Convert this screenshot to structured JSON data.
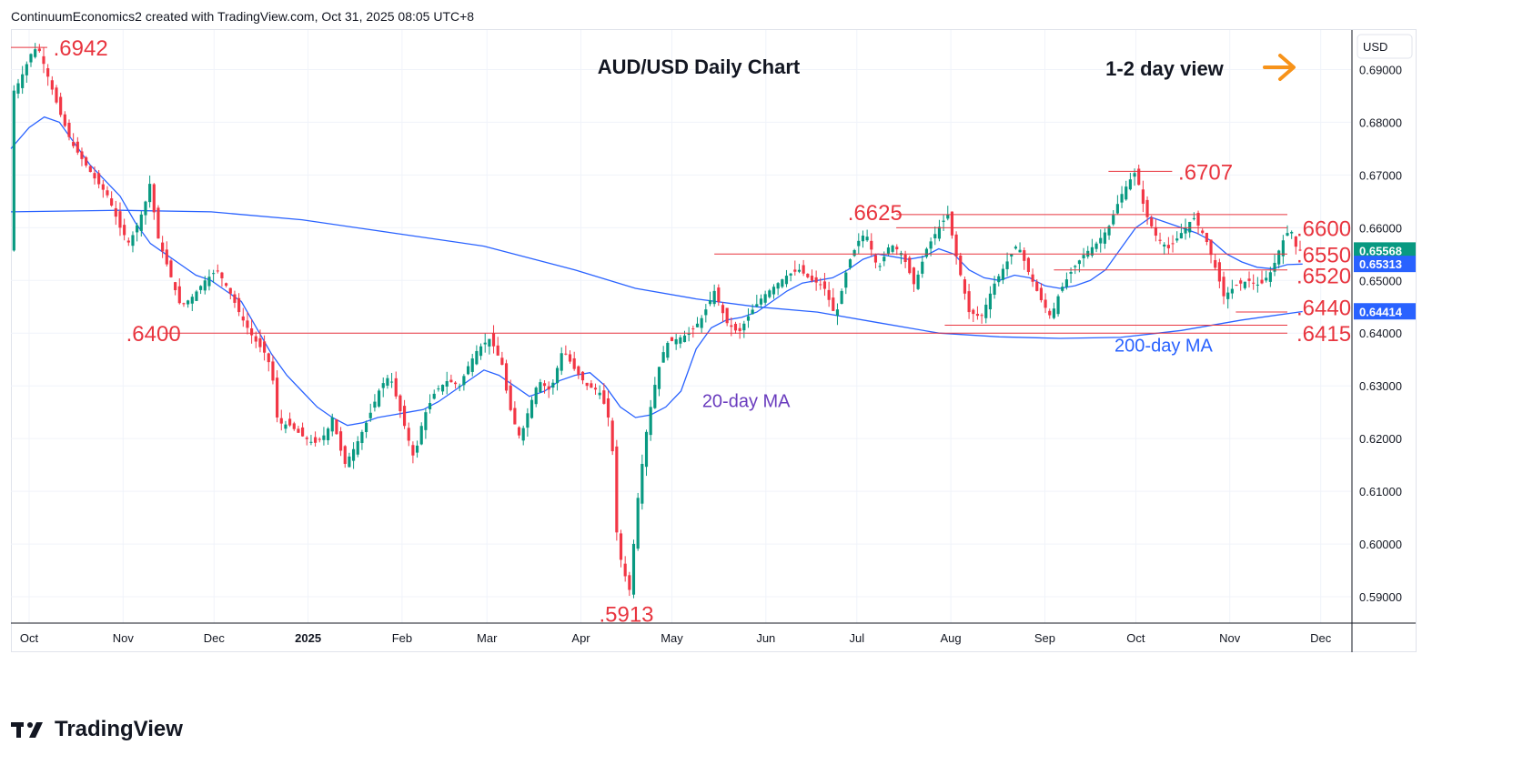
{
  "header": {
    "attribution": "ContinuumEconomics2 created with TradingView.com, Oct 31, 2025 08:05 UTC+8"
  },
  "footer": {
    "brand": "TradingView"
  },
  "chart_data": {
    "type": "candlestick",
    "title": "AUD/USD Daily Chart",
    "view_note": "1-2 day view",
    "view_arrow_color": "#f7931a",
    "currency": "USD",
    "y_range": [
      0.585,
      0.6975
    ],
    "y_ticks": [
      "0.59000",
      "0.60000",
      "0.61000",
      "0.62000",
      "0.63000",
      "0.64000",
      "0.65000",
      "0.66000",
      "0.67000",
      "0.68000",
      "0.69000"
    ],
    "x_ticks": [
      {
        "label": "Oct",
        "day": 0,
        "bold": false
      },
      {
        "label": "Nov",
        "day": 31,
        "bold": false
      },
      {
        "label": "Dec",
        "day": 61,
        "bold": false
      },
      {
        "label": "2025",
        "day": 92,
        "bold": true
      },
      {
        "label": "Feb",
        "day": 123,
        "bold": false
      },
      {
        "label": "Mar",
        "day": 151,
        "bold": false
      },
      {
        "label": "Apr",
        "day": 182,
        "bold": false
      },
      {
        "label": "May",
        "day": 212,
        "bold": false
      },
      {
        "label": "Jun",
        "day": 243,
        "bold": false
      },
      {
        "label": "Jul",
        "day": 273,
        "bold": false
      },
      {
        "label": "Aug",
        "day": 304,
        "bold": false
      },
      {
        "label": "Sep",
        "day": 335,
        "bold": false
      },
      {
        "label": "Oct",
        "day": 365,
        "bold": false
      },
      {
        "label": "Nov",
        "day": 396,
        "bold": false
      },
      {
        "label": "Dec",
        "day": 426,
        "bold": false
      }
    ],
    "x_day_range": [
      -6,
      436
    ],
    "price_path": [
      [
        -6,
        0.685
      ],
      [
        -3,
        0.688
      ],
      [
        1,
        0.6935
      ],
      [
        3,
        0.6942
      ],
      [
        6,
        0.689
      ],
      [
        10,
        0.682
      ],
      [
        14,
        0.676
      ],
      [
        18,
        0.6725
      ],
      [
        22,
        0.669
      ],
      [
        26,
        0.666
      ],
      [
        30,
        0.66
      ],
      [
        33,
        0.657
      ],
      [
        36,
        0.661
      ],
      [
        38,
        0.664
      ],
      [
        40,
        0.6688
      ],
      [
        42,
        0.659
      ],
      [
        46,
        0.652
      ],
      [
        50,
        0.645
      ],
      [
        54,
        0.647
      ],
      [
        58,
        0.65
      ],
      [
        62,
        0.652
      ],
      [
        66,
        0.648
      ],
      [
        70,
        0.643
      ],
      [
        74,
        0.639
      ],
      [
        78,
        0.636
      ],
      [
        80,
        0.633
      ],
      [
        82,
        0.623
      ],
      [
        86,
        0.6225
      ],
      [
        90,
        0.6205
      ],
      [
        94,
        0.619
      ],
      [
        98,
        0.621
      ],
      [
        100,
        0.624
      ],
      [
        104,
        0.615
      ],
      [
        108,
        0.619
      ],
      [
        112,
        0.624
      ],
      [
        116,
        0.63
      ],
      [
        119,
        0.632
      ],
      [
        122,
        0.626
      ],
      [
        125,
        0.62
      ],
      [
        127,
        0.616
      ],
      [
        130,
        0.624
      ],
      [
        134,
        0.629
      ],
      [
        138,
        0.631
      ],
      [
        142,
        0.63
      ],
      [
        145,
        0.634
      ],
      [
        148,
        0.637
      ],
      [
        152,
        0.639
      ],
      [
        156,
        0.634
      ],
      [
        158,
        0.627
      ],
      [
        160,
        0.623
      ],
      [
        162,
        0.62
      ],
      [
        165,
        0.626
      ],
      [
        168,
        0.631
      ],
      [
        172,
        0.629
      ],
      [
        176,
        0.637
      ],
      [
        180,
        0.633
      ],
      [
        184,
        0.63
      ],
      [
        188,
        0.629
      ],
      [
        190,
        0.626
      ],
      [
        192,
        0.622
      ],
      [
        194,
        0.6
      ],
      [
        196,
        0.595
      ],
      [
        198,
        0.5913
      ],
      [
        201,
        0.61
      ],
      [
        204,
        0.623
      ],
      [
        207,
        0.632
      ],
      [
        210,
        0.638
      ],
      [
        214,
        0.639
      ],
      [
        218,
        0.64
      ],
      [
        222,
        0.643
      ],
      [
        226,
        0.648
      ],
      [
        230,
        0.642
      ],
      [
        234,
        0.64
      ],
      [
        238,
        0.644
      ],
      [
        242,
        0.647
      ],
      [
        246,
        0.649
      ],
      [
        250,
        0.651
      ],
      [
        254,
        0.652
      ],
      [
        258,
        0.65
      ],
      [
        262,
        0.649
      ],
      [
        266,
        0.643
      ],
      [
        270,
        0.653
      ],
      [
        274,
        0.658
      ],
      [
        276,
        0.659
      ],
      [
        280,
        0.652
      ],
      [
        284,
        0.657
      ],
      [
        288,
        0.655
      ],
      [
        292,
        0.649
      ],
      [
        296,
        0.656
      ],
      [
        300,
        0.66
      ],
      [
        303,
        0.6625
      ],
      [
        306,
        0.654
      ],
      [
        310,
        0.644
      ],
      [
        314,
        0.643
      ],
      [
        318,
        0.649
      ],
      [
        322,
        0.653
      ],
      [
        326,
        0.657
      ],
      [
        330,
        0.651
      ],
      [
        334,
        0.646
      ],
      [
        337,
        0.643
      ],
      [
        340,
        0.648
      ],
      [
        344,
        0.652
      ],
      [
        348,
        0.655
      ],
      [
        352,
        0.657
      ],
      [
        356,
        0.66
      ],
      [
        360,
        0.666
      ],
      [
        363,
        0.669
      ],
      [
        365,
        0.6707
      ],
      [
        368,
        0.663
      ],
      [
        372,
        0.658
      ],
      [
        376,
        0.656
      ],
      [
        380,
        0.659
      ],
      [
        384,
        0.662
      ],
      [
        388,
        0.658
      ],
      [
        392,
        0.651
      ],
      [
        394,
        0.647
      ],
      [
        398,
        0.649
      ],
      [
        402,
        0.65
      ],
      [
        406,
        0.649
      ],
      [
        410,
        0.652
      ],
      [
        413,
        0.657
      ],
      [
        416,
        0.66
      ],
      [
        418,
        0.656
      ],
      [
        420,
        0.6557
      ]
    ],
    "ma20": [
      [
        -6,
        0.675
      ],
      [
        0,
        0.679
      ],
      [
        5,
        0.681
      ],
      [
        10,
        0.68
      ],
      [
        15,
        0.676
      ],
      [
        20,
        0.672
      ],
      [
        25,
        0.669
      ],
      [
        30,
        0.666
      ],
      [
        35,
        0.661
      ],
      [
        40,
        0.657
      ],
      [
        45,
        0.655
      ],
      [
        50,
        0.653
      ],
      [
        55,
        0.651
      ],
      [
        60,
        0.65
      ],
      [
        65,
        0.648
      ],
      [
        70,
        0.646
      ],
      [
        75,
        0.641
      ],
      [
        80,
        0.636
      ],
      [
        85,
        0.632
      ],
      [
        90,
        0.629
      ],
      [
        95,
        0.626
      ],
      [
        100,
        0.624
      ],
      [
        105,
        0.6225
      ],
      [
        110,
        0.623
      ],
      [
        115,
        0.624
      ],
      [
        120,
        0.6245
      ],
      [
        125,
        0.625
      ],
      [
        130,
        0.6255
      ],
      [
        135,
        0.627
      ],
      [
        140,
        0.629
      ],
      [
        145,
        0.631
      ],
      [
        150,
        0.633
      ],
      [
        155,
        0.632
      ],
      [
        160,
        0.63
      ],
      [
        165,
        0.628
      ],
      [
        170,
        0.629
      ],
      [
        175,
        0.631
      ],
      [
        180,
        0.632
      ],
      [
        185,
        0.6325
      ],
      [
        190,
        0.63
      ],
      [
        195,
        0.626
      ],
      [
        200,
        0.624
      ],
      [
        205,
        0.6245
      ],
      [
        210,
        0.626
      ],
      [
        215,
        0.629
      ],
      [
        220,
        0.637
      ],
      [
        225,
        0.641
      ],
      [
        230,
        0.6425
      ],
      [
        235,
        0.643
      ],
      [
        240,
        0.644
      ],
      [
        245,
        0.646
      ],
      [
        250,
        0.648
      ],
      [
        255,
        0.6495
      ],
      [
        260,
        0.65
      ],
      [
        265,
        0.6505
      ],
      [
        270,
        0.652
      ],
      [
        275,
        0.654
      ],
      [
        280,
        0.655
      ],
      [
        285,
        0.6545
      ],
      [
        290,
        0.654
      ],
      [
        295,
        0.6545
      ],
      [
        300,
        0.656
      ],
      [
        305,
        0.655
      ],
      [
        310,
        0.652
      ],
      [
        315,
        0.6505
      ],
      [
        320,
        0.65
      ],
      [
        325,
        0.651
      ],
      [
        330,
        0.6505
      ],
      [
        335,
        0.649
      ],
      [
        340,
        0.6485
      ],
      [
        345,
        0.649
      ],
      [
        350,
        0.65
      ],
      [
        355,
        0.652
      ],
      [
        360,
        0.656
      ],
      [
        365,
        0.66
      ],
      [
        370,
        0.662
      ],
      [
        375,
        0.661
      ],
      [
        380,
        0.66
      ],
      [
        385,
        0.659
      ],
      [
        390,
        0.6575
      ],
      [
        395,
        0.655
      ],
      [
        400,
        0.6535
      ],
      [
        405,
        0.6525
      ],
      [
        410,
        0.6522
      ],
      [
        415,
        0.653
      ],
      [
        420,
        0.6531
      ]
    ],
    "ma200": [
      [
        -6,
        0.663
      ],
      [
        30,
        0.6633
      ],
      [
        60,
        0.663
      ],
      [
        90,
        0.6615
      ],
      [
        120,
        0.659
      ],
      [
        150,
        0.6565
      ],
      [
        180,
        0.652
      ],
      [
        200,
        0.6485
      ],
      [
        220,
        0.6465
      ],
      [
        240,
        0.645
      ],
      [
        260,
        0.644
      ],
      [
        280,
        0.642
      ],
      [
        300,
        0.64
      ],
      [
        320,
        0.6393
      ],
      [
        340,
        0.639
      ],
      [
        360,
        0.6392
      ],
      [
        380,
        0.6405
      ],
      [
        400,
        0.6425
      ],
      [
        420,
        0.6441
      ]
    ],
    "ma20_color": "#2962ff",
    "ma200_color": "#2962ff",
    "up_color": "#089981",
    "down_color": "#f23645",
    "level_color": "#e8353f",
    "levels": [
      {
        "label": ".6942",
        "price": 0.6942,
        "from": -6,
        "to": 6,
        "label_day": 8,
        "label_price": 0.6942
      },
      {
        "label": ".6707",
        "price": 0.6707,
        "from": 356,
        "to": 377,
        "label_day": 379,
        "label_price": 0.6707
      },
      {
        "label": ".6625",
        "price": 0.6625,
        "from": 286,
        "to": 415,
        "label_day": 270,
        "label_price": 0.663
      },
      {
        "label": ".6600",
        "price": 0.66,
        "from": 286,
        "to": 415,
        "label_day": 418,
        "label_price": 0.66
      },
      {
        "label": ".6550",
        "price": 0.655,
        "from": 226,
        "to": 415,
        "label_day": 418,
        "label_price": 0.655
      },
      {
        "label": ".6520",
        "price": 0.652,
        "from": 338,
        "to": 415,
        "label_day": 418,
        "label_price": 0.651
      },
      {
        "label": ".6440",
        "price": 0.644,
        "from": 398,
        "to": 415,
        "label_day": 418,
        "label_price": 0.645
      },
      {
        "label": ".6415",
        "price": 0.6415,
        "from": 302,
        "to": 415,
        "label_day": 418,
        "label_price": 0.64
      },
      {
        "label": ".6400",
        "price": 0.64,
        "from": 44,
        "to": 415,
        "label_day": 32,
        "label_price": 0.64
      }
    ],
    "low_label": {
      "label": ".5913",
      "day": 197,
      "price": 0.5868
    },
    "annotations": [
      {
        "text": "20-day MA",
        "day": 222,
        "price": 0.626,
        "color": "#6a3cbe"
      },
      {
        "text": "200-day MA",
        "day": 358,
        "price": 0.6365,
        "color": "#2962ff"
      }
    ],
    "price_badges": [
      {
        "text": "0.65568",
        "price": 0.65568,
        "color": "#089981"
      },
      {
        "text": "0.65313",
        "price": 0.65313,
        "color": "#2962ff"
      },
      {
        "text": "0.64414",
        "price": 0.64414,
        "color": "#2962ff"
      }
    ],
    "grid": true
  }
}
